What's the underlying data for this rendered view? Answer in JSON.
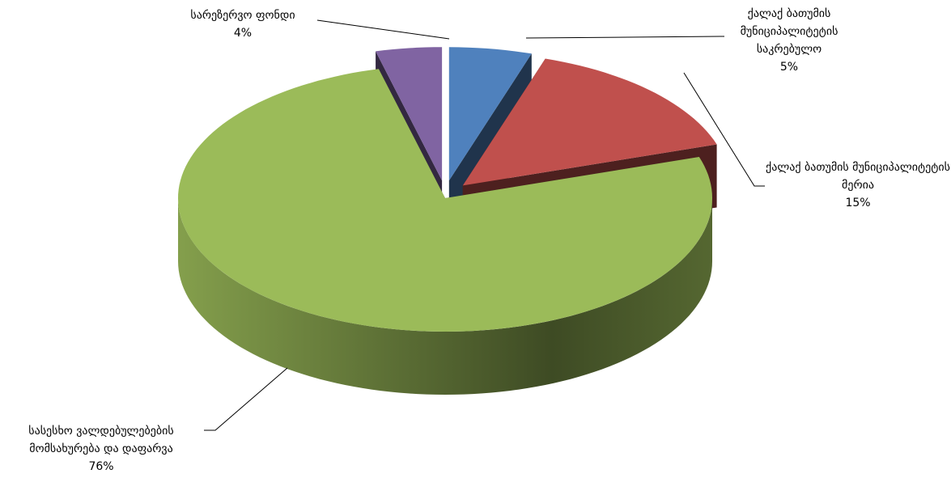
{
  "chart_data": {
    "type": "pie",
    "categories": [
      "ქალაქ ბათუმის მუნიციპალიტეტის საკრებულო",
      "ქალაქ ბათუმის მუნიციპალიტეტის მერია",
      "სასესხო ვალდებულებების მომსახურება და დაფარვა",
      "სარეზერვო ფონდი"
    ],
    "values": [
      5,
      15,
      76,
      4
    ],
    "value_labels": [
      "5%",
      "15%",
      "76%",
      "4%"
    ],
    "colors": [
      "#4f81bd",
      "#c0504d",
      "#9bbb59",
      "#8064a2"
    ],
    "three_d": true,
    "exploded": true
  }
}
